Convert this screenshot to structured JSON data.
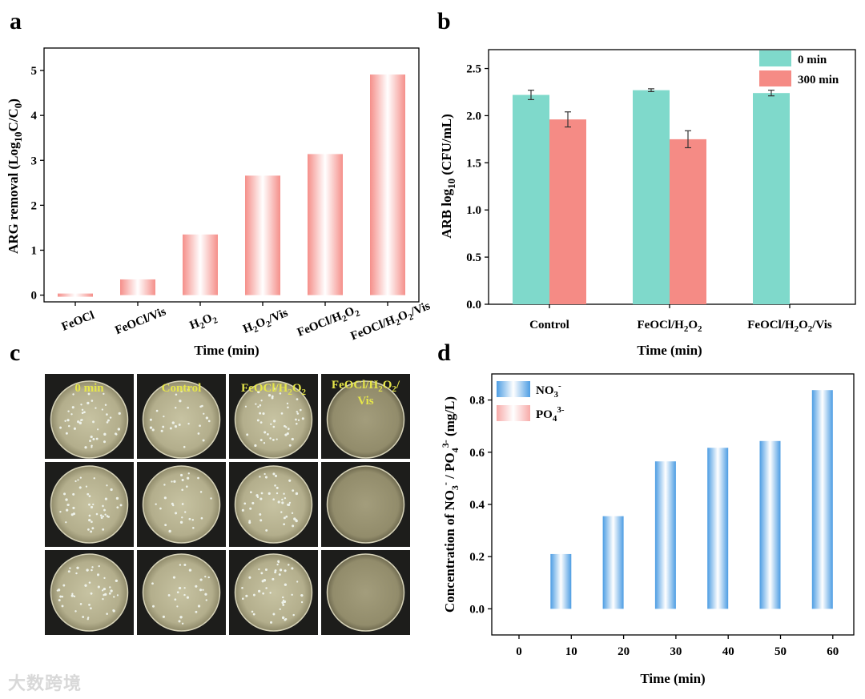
{
  "panels": {
    "a": {
      "label": "a"
    },
    "b": {
      "label": "b"
    },
    "c": {
      "label": "c"
    },
    "d": {
      "label": "d"
    }
  },
  "colors": {
    "pink": "#f58f8a",
    "teal": "#7fd9cb",
    "salmon": "#f58b85",
    "blue": "#5aa7e6",
    "lightpink": "#f7b2b0",
    "platetext": "#e6e64a"
  },
  "chart_data": [
    {
      "id": "a",
      "type": "bar",
      "categories": [
        "FeOCl",
        "FeOCl/Vis",
        "H2O2",
        "H2O2/Vis",
        "FeOCl/H2O2",
        "FeOCl/H2O2/Vis"
      ],
      "category_labels": [
        "FeOCl",
        "FeOCl/Vis",
        "H₂O₂",
        "H₂O₂/Vis",
        "FeOCl/H₂O₂",
        "FeOCl/H₂O₂/Vis"
      ],
      "values": [
        0.0,
        0.35,
        1.35,
        2.66,
        3.14,
        4.91
      ],
      "xlabel": "Time (min)",
      "ylabel": "ARG removal (Log10C/C0)",
      "ylim": [
        -0.15,
        5.5
      ],
      "yticks": [
        0,
        1,
        2,
        3,
        4,
        5
      ]
    },
    {
      "id": "b",
      "type": "bar",
      "categories": [
        "Control",
        "FeOCl/H2O2",
        "FeOCl/H2O2/Vis"
      ],
      "category_labels": [
        "Control",
        "FeOCl/H₂O₂",
        "FeOCl/H₂O₂/Vis"
      ],
      "series": [
        {
          "name": "0 min",
          "values": [
            2.22,
            2.27,
            2.24
          ],
          "errors": [
            0.05,
            0.015,
            0.03
          ]
        },
        {
          "name": "300 min",
          "values": [
            1.96,
            1.75,
            null
          ],
          "errors": [
            0.08,
            0.09,
            null
          ]
        }
      ],
      "xlabel": "Time (min)",
      "ylabel": "ARB log10 (CFU/mL)",
      "ylim": [
        0,
        2.7
      ],
      "yticks": [
        "0.0",
        "0.5",
        "1.0",
        "1.5",
        "2.0",
        "2.5"
      ],
      "legend": "top-right"
    },
    {
      "id": "d",
      "type": "bar",
      "categories": [
        "0",
        "10",
        "20",
        "30",
        "40",
        "50",
        "60"
      ],
      "series": [
        {
          "name": "NO3-",
          "values": [
            0.0,
            0.21,
            0.355,
            0.565,
            0.617,
            0.643,
            0.838
          ]
        },
        {
          "name": "PO43-",
          "values": [
            0,
            0,
            0,
            0,
            0,
            0,
            0
          ]
        }
      ],
      "xlabel": "Time (min)",
      "ylabel": "Concentration of NO3- / PO43- (mg/L)",
      "ylim": [
        -0.1,
        0.9
      ],
      "yticks": [
        "0.0",
        "0.2",
        "0.4",
        "0.6",
        "0.8"
      ],
      "legend": "top-left"
    }
  ],
  "plates": {
    "columns": [
      "0 min",
      "Control",
      "FeOCl/H2O2",
      "FeOCl/H2O2/Vis"
    ],
    "column_labels": [
      "0 min",
      "Control",
      "FeOCl/H₂O₂",
      "FeOCl/H₂O₂/ Vis"
    ],
    "rows": 3
  },
  "watermark": "大数跨境"
}
